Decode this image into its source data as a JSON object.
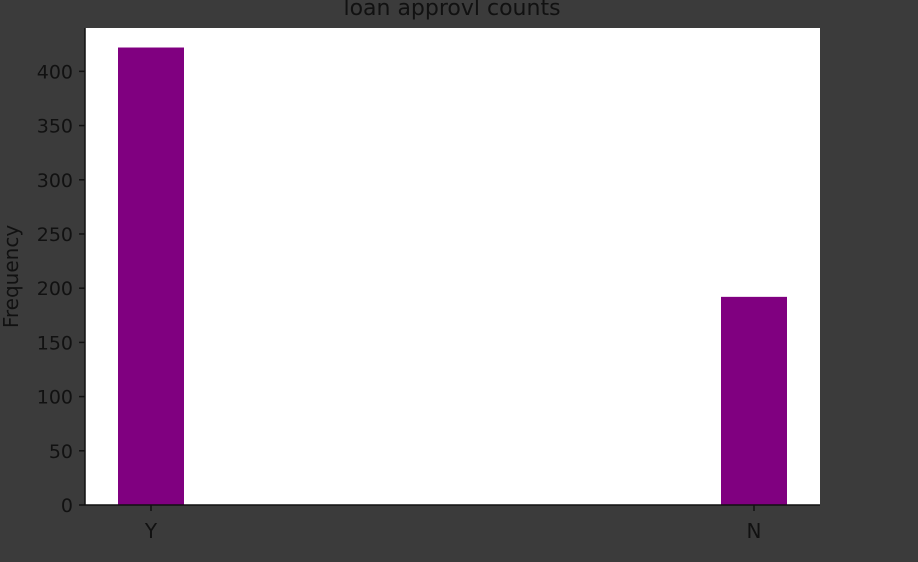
{
  "chart_data": {
    "type": "bar",
    "title": "loan approvl counts",
    "xlabel": "",
    "ylabel": "Frequency",
    "categories": [
      "Y",
      "N"
    ],
    "values": [
      422,
      192
    ],
    "ylim": [
      0,
      440
    ],
    "yticks": [
      0,
      50,
      100,
      150,
      200,
      250,
      300,
      350,
      400
    ],
    "grid": false,
    "legend": "none"
  },
  "colors": {
    "background": "#3b3b3b",
    "plot_area": "#ffffff",
    "bar": "#800080",
    "text": "#111111",
    "axis": "#111111"
  }
}
